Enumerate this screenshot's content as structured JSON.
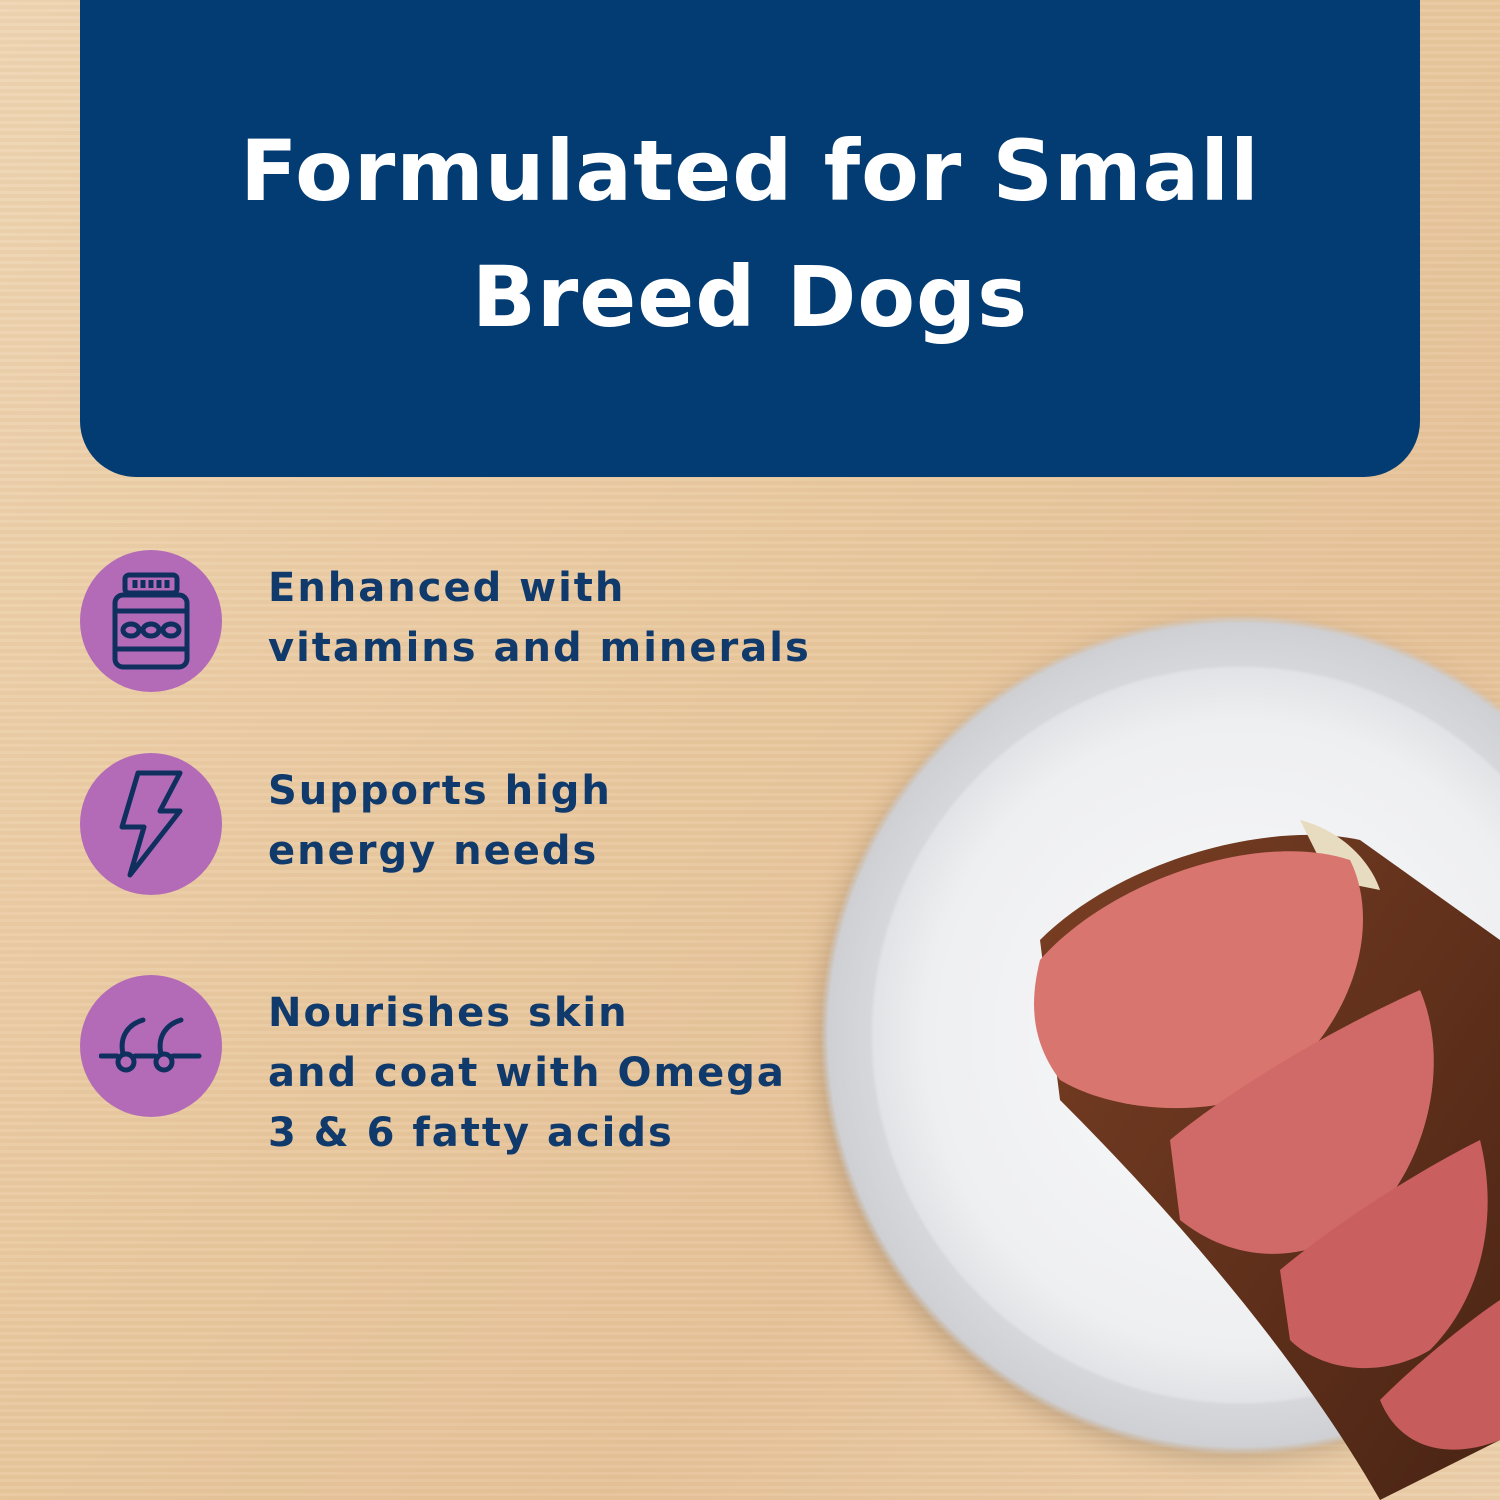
{
  "banner": {
    "title": "Formulated for Small\nBreed Dogs",
    "color": "#023c73"
  },
  "features": [
    {
      "icon": "vitamin-jar-icon",
      "text": "Enhanced with\nvitamins and minerals"
    },
    {
      "icon": "lightning-bolt-icon",
      "text": "Supports high\nenergy needs"
    },
    {
      "icon": "hair-follicle-icon",
      "text": "Nourishes skin\nand coat with Omega\n3 & 6 fatty acids"
    }
  ],
  "colors": {
    "icon_circle": "#b36bb8",
    "text": "#0f3a6b"
  }
}
